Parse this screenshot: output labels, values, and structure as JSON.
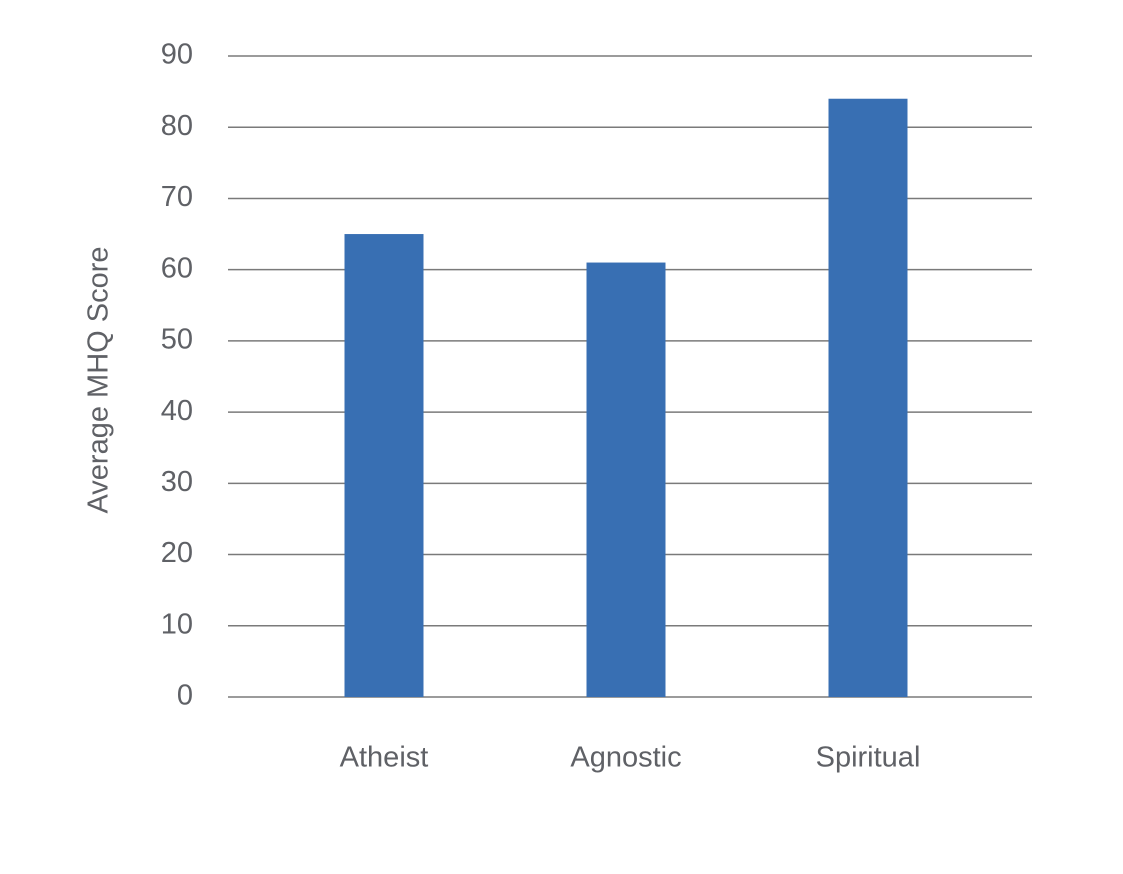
{
  "chart_data": {
    "type": "bar",
    "y_label": "Average MHQ Score",
    "categories": [
      "Atheist",
      "Agnostic",
      "Spiritual"
    ],
    "values": [
      65,
      61,
      84
    ],
    "color": "#386fb3",
    "ylim": [
      0,
      90
    ],
    "yticks": [
      0,
      10,
      20,
      30,
      40,
      50,
      60,
      70,
      80,
      90
    ],
    "grid": true
  }
}
